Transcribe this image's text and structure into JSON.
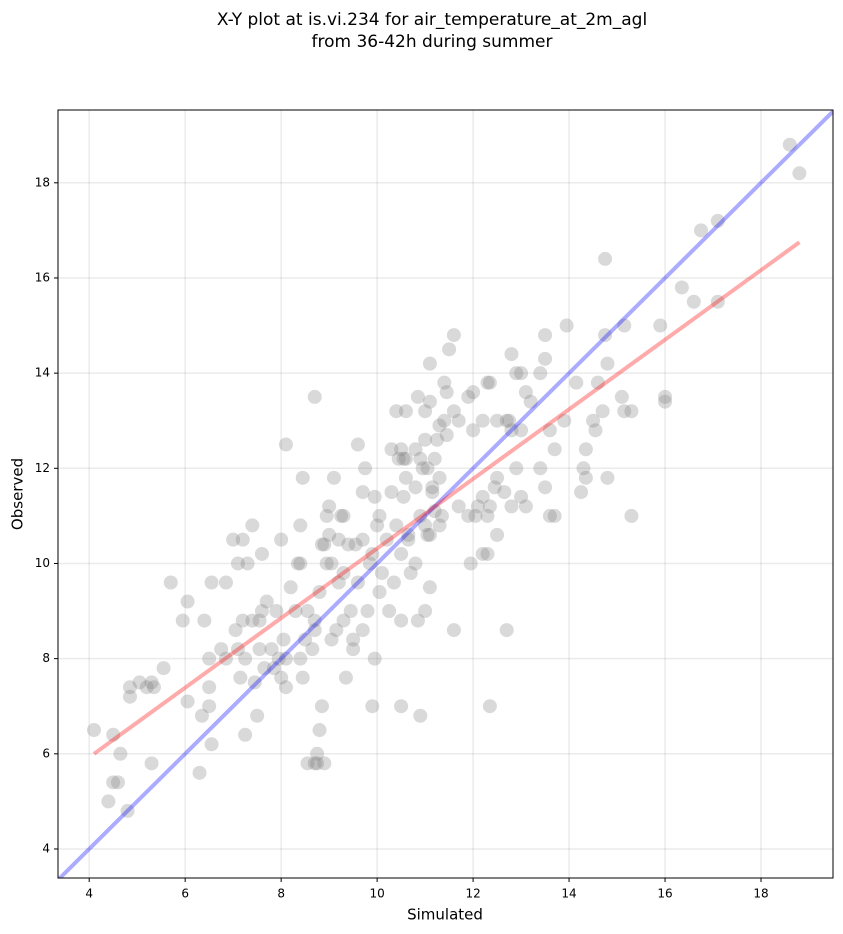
{
  "chart_data": {
    "type": "scatter",
    "title": [
      "X-Y plot at is.vi.234 for air_temperature_at_2m_agl",
      "from 36-42h during summer"
    ],
    "xlabel": "Simulated",
    "ylabel": "Observed",
    "xlim": [
      3.35,
      19.5
    ],
    "ylim": [
      3.39,
      19.53
    ],
    "xticks": [
      4,
      6,
      8,
      10,
      12,
      14,
      16,
      18
    ],
    "yticks": [
      4,
      6,
      8,
      10,
      12,
      14,
      16,
      18
    ],
    "grid": true,
    "series": [
      {
        "color": "#808080",
        "x": [
          4.1,
          4.4,
          4.5,
          4.5,
          4.6,
          4.65,
          4.8,
          4.85,
          4.85,
          5.05,
          5.2,
          5.3,
          5.35,
          5.3,
          5.55,
          5.7,
          5.95,
          6.05,
          6.05,
          6.3,
          6.35,
          6.4,
          6.5,
          6.5,
          6.55,
          6.5,
          6.55,
          6.75,
          6.85,
          6.85,
          7.0,
          7.05,
          7.1,
          7.1,
          7.15,
          7.2,
          7.2,
          7.25,
          7.25,
          7.3,
          7.4,
          7.4,
          7.45,
          7.5,
          7.55,
          7.55,
          7.6,
          7.6,
          7.65,
          7.7,
          7.8,
          7.85,
          7.9,
          7.95,
          8.0,
          8.0,
          8.05,
          8.1,
          8.1,
          8.2,
          8.1,
          8.3,
          8.35,
          8.4,
          8.4,
          8.45,
          8.45,
          8.5,
          8.55,
          8.4,
          8.55,
          8.7,
          8.75,
          8.75,
          8.9,
          8.8,
          8.85,
          8.7,
          8.65,
          8.7,
          8.8,
          8.85,
          8.9,
          8.95,
          8.95,
          9.0,
          9.0,
          9.05,
          9.05,
          9.1,
          9.15,
          9.2,
          9.2,
          8.7,
          9.25,
          9.3,
          9.3,
          9.3,
          9.35,
          9.4,
          9.45,
          9.5,
          9.5,
          9.55,
          9.6,
          9.6,
          9.7,
          9.7,
          9.7,
          9.75,
          9.8,
          9.85,
          9.9,
          9.9,
          9.95,
          9.95,
          10.0,
          10.05,
          10.05,
          10.1,
          10.2,
          10.25,
          10.3,
          10.3,
          10.35,
          10.4,
          10.5,
          10.5,
          10.5,
          10.55,
          10.6,
          10.5,
          10.65,
          10.7,
          10.8,
          10.85,
          10.9,
          10.95,
          11.0,
          11.0,
          11.1,
          11.15,
          11.2,
          10.9,
          12.8,
          12.9,
          13.0,
          13.1,
          13.2,
          13.0,
          13.4,
          13.5,
          13.4,
          13.6,
          13.7,
          13.5,
          13.5,
          13.6,
          13.7,
          13.9,
          13.95,
          14.15,
          14.25,
          14.3,
          14.35,
          14.35,
          14.5,
          14.55,
          14.6,
          14.7,
          14.75,
          14.75,
          14.8,
          14.8,
          15.1,
          15.15,
          15.15,
          15.3,
          15.3,
          15.9,
          16.0,
          16.0,
          16.35,
          16.6,
          16.75,
          17.1,
          17.1,
          18.6,
          18.8,
          11.1,
          11.5,
          11.6,
          11.4,
          11.45,
          11.6,
          11.7,
          11.9,
          12.0,
          12.0,
          12.2,
          12.3,
          12.35,
          12.5,
          12.7,
          12.75,
          12.8,
          11.7,
          11.9,
          12.05,
          12.1,
          12.2,
          12.3,
          12.35,
          12.5,
          12.45,
          12.65,
          12.8,
          12.9,
          13.0,
          13.1,
          12.2,
          12.3,
          11.95,
          12.5,
          11.6,
          12.7,
          12.35,
          11.1,
          11.3,
          11.35,
          11.3,
          11.25,
          11.3,
          11.4,
          11.45,
          11.0,
          11.0,
          11.1,
          10.85,
          10.8,
          10.9,
          11.05,
          11.15,
          11.05,
          11.2,
          10.8,
          10.65,
          10.6,
          10.4,
          10.6,
          10.55,
          10.45
        ],
        "values": [
          6.5,
          5.0,
          5.4,
          6.4,
          5.4,
          6.0,
          4.8,
          7.2,
          7.4,
          7.5,
          7.4,
          7.5,
          7.4,
          5.8,
          7.8,
          9.6,
          8.8,
          9.2,
          7.1,
          5.6,
          6.8,
          8.8,
          7.4,
          7.0,
          6.2,
          8.0,
          9.6,
          8.2,
          9.6,
          8.0,
          10.5,
          8.6,
          8.2,
          10.0,
          7.6,
          10.5,
          8.8,
          8.0,
          6.4,
          10.0,
          10.8,
          8.8,
          7.5,
          6.8,
          8.2,
          8.8,
          9.0,
          10.2,
          7.8,
          9.2,
          8.2,
          7.8,
          9.0,
          8.0,
          7.6,
          10.5,
          8.4,
          7.4,
          8.0,
          9.5,
          12.5,
          9.0,
          10.0,
          10.8,
          8.0,
          7.6,
          11.8,
          8.4,
          9.0,
          10.0,
          5.8,
          5.8,
          6.0,
          5.8,
          5.8,
          6.5,
          7.0,
          8.8,
          8.2,
          8.6,
          9.4,
          10.4,
          10.4,
          10.0,
          11.0,
          11.2,
          10.6,
          10.0,
          8.4,
          11.8,
          8.6,
          9.6,
          10.5,
          13.5,
          11.0,
          11.0,
          9.8,
          8.8,
          7.6,
          10.4,
          9.0,
          8.4,
          8.2,
          10.4,
          12.5,
          9.6,
          11.5,
          10.5,
          8.6,
          12.0,
          9.0,
          10.0,
          7.0,
          10.2,
          8.0,
          11.4,
          10.8,
          9.4,
          11.0,
          9.8,
          10.5,
          9.0,
          11.5,
          12.4,
          9.6,
          10.8,
          10.2,
          12.4,
          8.8,
          11.4,
          12.2,
          7.0,
          10.5,
          9.8,
          10.0,
          8.8,
          11.0,
          12.0,
          10.8,
          9.0,
          10.6,
          11.6,
          12.2,
          6.8,
          14.4,
          14.0,
          14.0,
          13.6,
          13.4,
          12.8,
          14.0,
          11.6,
          12.0,
          11.0,
          11.0,
          14.8,
          14.3,
          12.8,
          12.4,
          13.0,
          15.0,
          13.8,
          11.5,
          12.0,
          12.4,
          11.8,
          13.0,
          12.8,
          13.8,
          13.2,
          14.8,
          16.4,
          14.2,
          11.8,
          13.5,
          13.2,
          15.0,
          13.2,
          11.0,
          15.0,
          13.5,
          13.4,
          15.8,
          15.5,
          17.0,
          17.2,
          15.5,
          18.8,
          18.2,
          14.2,
          14.5,
          14.8,
          13.8,
          13.6,
          13.2,
          13.0,
          13.5,
          13.6,
          12.8,
          13.0,
          13.8,
          13.8,
          13.0,
          13.0,
          13.0,
          12.8,
          11.2,
          11.0,
          11.0,
          11.2,
          11.4,
          11.0,
          11.2,
          11.8,
          11.6,
          11.5,
          11.2,
          12.0,
          11.4,
          11.2,
          10.2,
          10.2,
          10.0,
          10.6,
          8.6,
          8.6,
          7.0,
          9.5,
          10.8,
          11.0,
          11.8,
          12.6,
          12.9,
          13.0,
          12.7,
          13.2,
          12.6,
          13.4,
          13.5,
          12.4,
          12.2,
          12.0,
          11.5,
          10.6,
          11.1,
          11.6,
          10.6,
          11.8,
          13.2,
          13.2,
          12.2,
          12.2
        ]
      }
    ],
    "lines": [
      {
        "color": "#0000ff",
        "x": [
          3.35,
          19.5
        ],
        "y": [
          3.35,
          19.5
        ]
      },
      {
        "color": "#ff0000",
        "x": [
          4.1,
          18.8
        ],
        "y": [
          6.0,
          16.75
        ]
      }
    ]
  }
}
